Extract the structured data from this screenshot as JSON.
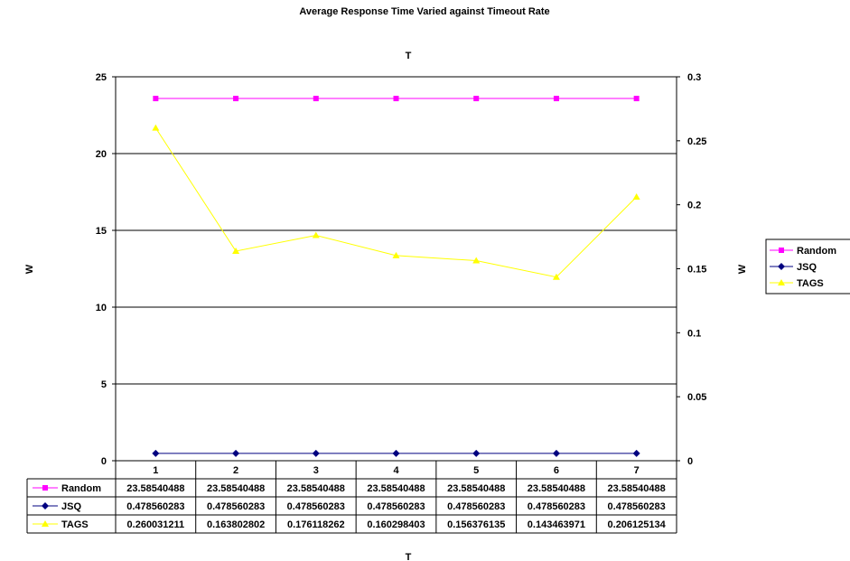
{
  "chart_data": {
    "type": "line",
    "title": "Average Response Time Varied against Timeout Rate",
    "top_label": "T",
    "xlabel": "T",
    "ylabel_left": "W",
    "ylabel_right": "W",
    "categories": [
      "1",
      "2",
      "3",
      "4",
      "5",
      "6",
      "7"
    ],
    "ylim_left": [
      0,
      25
    ],
    "yticks_left": [
      "0",
      "5",
      "10",
      "15",
      "20",
      "25"
    ],
    "ylim_right": [
      0,
      0.3
    ],
    "yticks_right": [
      "0",
      "0.05",
      "0.1",
      "0.15",
      "0.2",
      "0.25",
      "0.3"
    ],
    "grid": true,
    "legend_position": "right",
    "series": [
      {
        "name": "Random",
        "axis": "left",
        "color": "#FF00FF",
        "marker": "square",
        "values": [
          23.58540488,
          23.58540488,
          23.58540488,
          23.58540488,
          23.58540488,
          23.58540488,
          23.58540488
        ],
        "labels": [
          "23.58540488",
          "23.58540488",
          "23.58540488",
          "23.58540488",
          "23.58540488",
          "23.58540488",
          "23.58540488"
        ]
      },
      {
        "name": "JSQ",
        "axis": "left",
        "color": "#000080",
        "marker": "diamond",
        "values": [
          0.478560283,
          0.478560283,
          0.478560283,
          0.478560283,
          0.478560283,
          0.478560283,
          0.478560283
        ],
        "labels": [
          "0.478560283",
          "0.478560283",
          "0.478560283",
          "0.478560283",
          "0.478560283",
          "0.478560283",
          "0.478560283"
        ]
      },
      {
        "name": "TAGS",
        "axis": "right",
        "color": "#FFFF00",
        "marker": "triangle",
        "values": [
          0.260031211,
          0.163802802,
          0.176118262,
          0.160298403,
          0.156376135,
          0.143463971,
          0.206125134
        ],
        "labels": [
          "0.260031211",
          "0.163802802",
          "0.176118262",
          "0.160298403",
          "0.156376135",
          "0.143463971",
          "0.206125134"
        ]
      }
    ]
  }
}
